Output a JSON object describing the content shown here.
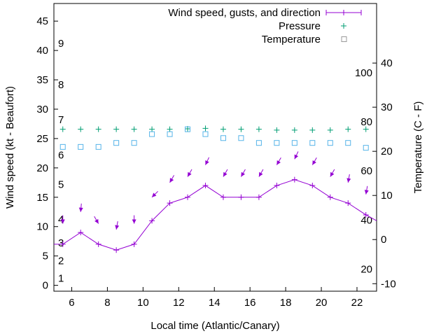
{
  "chart_data": {
    "type": "line",
    "xlabel": "Local time (Atlantic/Canary)",
    "ylabel": "Wind speed (kt - Beaufort)",
    "y2label": "Temperature (C - F)",
    "xlim": [
      5,
      23.1
    ],
    "ylim": [
      -1,
      48
    ],
    "y2lim": [
      -11.7,
      53.5
    ],
    "xticks": [
      6,
      8,
      10,
      12,
      14,
      16,
      18,
      20,
      22
    ],
    "yticks": [
      0,
      5,
      10,
      15,
      20,
      25,
      30,
      35,
      40,
      45
    ],
    "y2ticks": [
      -10,
      0,
      10,
      20,
      30,
      40
    ],
    "beaufort_labels": [
      {
        "t": "1",
        "v": 1.2
      },
      {
        "t": "2",
        "v": 4.2
      },
      {
        "t": "3",
        "v": 7.2
      },
      {
        "t": "4",
        "v": 11.2
      },
      {
        "t": "5",
        "v": 17.2
      },
      {
        "t": "6",
        "v": 22.2
      },
      {
        "t": "7",
        "v": 28.2
      },
      {
        "t": "8",
        "v": 34.2
      },
      {
        "t": "9",
        "v": 41.2
      }
    ],
    "fahrenheit_labels": [
      {
        "t": "20",
        "v": -6.7
      },
      {
        "t": "40",
        "v": 4.4
      },
      {
        "t": "60",
        "v": 15.6
      },
      {
        "t": "80",
        "v": 26.7
      },
      {
        "t": "100",
        "v": 37.8
      }
    ],
    "legend": [
      "Wind speed, gusts, and direction",
      "Pressure",
      "Temperature"
    ],
    "legend_position": "top-right",
    "colors": {
      "wind": "#9400d3",
      "pressure": "#009e73",
      "temperature": "#56b4e9"
    },
    "x": [
      5.5,
      6.5,
      7.5,
      8.5,
      9.5,
      10.5,
      11.5,
      12.5,
      13.5,
      14.5,
      15.5,
      16.5,
      17.5,
      18.5,
      19.5,
      20.5,
      21.5,
      22.5
    ],
    "wind": [
      7,
      9,
      7,
      6,
      7,
      11,
      14,
      15,
      17,
      15,
      15,
      15,
      17,
      18,
      17,
      15,
      14,
      12
    ],
    "wind_edges": [
      {
        "x": 5,
        "v": 7
      },
      {
        "x": 23.1,
        "v": 11
      }
    ],
    "gusts": [
      10.5,
      12.5,
      10.5,
      9.5,
      10.5,
      15,
      17.5,
      18.5,
      20.5,
      18.5,
      18.5,
      18.5,
      20.5,
      21.5,
      20.5,
      18.5,
      17.5,
      15.5
    ],
    "direction_deg": [
      0,
      5,
      330,
      10,
      0,
      45,
      30,
      30,
      25,
      30,
      30,
      30,
      30,
      25,
      30,
      30,
      10,
      10
    ],
    "pressure": [
      25,
      25,
      25,
      25,
      25,
      25,
      25,
      25.1,
      25.2,
      25,
      25,
      25,
      24.8,
      24.8,
      24.8,
      24.8,
      25,
      25
    ],
    "temperature": [
      21,
      21,
      21,
      21.9,
      21.9,
      23.9,
      23.9,
      25,
      23.9,
      23,
      23,
      21.9,
      21.9,
      21.9,
      21.9,
      21.9,
      21.9,
      20.8
    ]
  }
}
